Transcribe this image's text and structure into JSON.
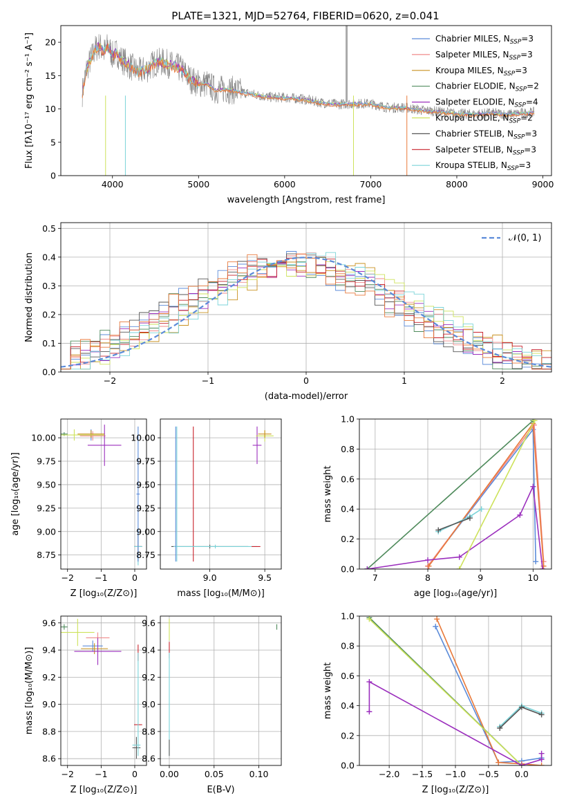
{
  "colors": {
    "chabrier_miles": "#5b8bd9",
    "salpeter_miles": "#f08a8a",
    "kroupa_miles": "#c9901f",
    "chabrier_elodie": "#4e8a5b",
    "salpeter_elodie": "#9b2ebd",
    "kroupa_elodie": "#cde25a",
    "chabrier_stelib": "#555555",
    "salpeter_stelib": "#c8202a",
    "kroupa_stelib": "#7ad3d8",
    "weight_orange": "#e8793a",
    "normal_curve": "#5b8bd9",
    "spectrum_data": "#808080"
  },
  "chart_data": [
    {
      "id": "spectrum",
      "type": "line",
      "title": "PLATE=1321, MJD=52764, FIBERID=0620, z=0.041",
      "xlabel": "wavelength [Angstrom, rest frame]",
      "ylabel": "Flux [fλ10⁻¹⁷ erg cm⁻² s⁻¹ A⁻¹]",
      "xlim": [
        3400,
        9100
      ],
      "ylim": [
        0,
        22.5
      ],
      "xticks": [
        "4000",
        "5000",
        "6000",
        "7000",
        "8000",
        "9000"
      ],
      "yticks": [
        "0",
        "5",
        "10",
        "15",
        "20"
      ],
      "legend_position": "upper-right",
      "legend": [
        {
          "label": "Chabrier MILES, N",
          "sub": "SSP",
          "suffix": "=3"
        },
        {
          "label": "Salpeter MILES, N",
          "sub": "SSP",
          "suffix": "=3"
        },
        {
          "label": "Kroupa MILES, N",
          "sub": "SSP",
          "suffix": "=3"
        },
        {
          "label": "Chabrier ELODIE, N",
          "sub": "SSP",
          "suffix": "=2"
        },
        {
          "label": "Salpeter ELODIE, N",
          "sub": "SSP",
          "suffix": "=4"
        },
        {
          "label": "Kroupa ELODIE, N",
          "sub": "SSP",
          "suffix": "=2"
        },
        {
          "label": "Chabrier STELIB, N",
          "sub": "SSP",
          "suffix": "=3"
        },
        {
          "label": "Salpeter STELIB, N",
          "sub": "SSP",
          "suffix": "=3"
        },
        {
          "label": "Kroupa STELIB, N",
          "sub": "SSP",
          "suffix": "=3"
        }
      ],
      "spectrum_points": [
        [
          3650,
          12.5
        ],
        [
          3700,
          16
        ],
        [
          3750,
          17.5
        ],
        [
          3800,
          19
        ],
        [
          3850,
          19.5
        ],
        [
          3900,
          18.5
        ],
        [
          3950,
          19.5
        ],
        [
          4000,
          18
        ],
        [
          4050,
          18.5
        ],
        [
          4100,
          17.5
        ],
        [
          4200,
          16.5
        ],
        [
          4300,
          15.5
        ],
        [
          4400,
          16
        ],
        [
          4500,
          17
        ],
        [
          4600,
          17
        ],
        [
          4700,
          16.5
        ],
        [
          4800,
          16
        ],
        [
          4900,
          14.5
        ],
        [
          5000,
          13.8
        ],
        [
          5100,
          13.8
        ],
        [
          5200,
          12.8
        ],
        [
          5300,
          13
        ],
        [
          5400,
          12.8
        ],
        [
          5500,
          12.5
        ],
        [
          5600,
          12.3
        ],
        [
          5800,
          11.8
        ],
        [
          6000,
          11.7
        ],
        [
          6200,
          11.5
        ],
        [
          6400,
          11
        ],
        [
          6600,
          10.7
        ],
        [
          6800,
          10.8
        ],
        [
          7000,
          10.8
        ],
        [
          7200,
          10.2
        ],
        [
          7400,
          10.2
        ],
        [
          7600,
          9.8
        ],
        [
          7800,
          9.6
        ],
        [
          8000,
          9.3
        ],
        [
          8200,
          9.2
        ],
        [
          8400,
          9.4
        ],
        [
          8600,
          9.2
        ],
        [
          8800,
          9.4
        ],
        [
          8900,
          9.5
        ]
      ]
    },
    {
      "id": "residuals",
      "type": "step",
      "xlabel": "(data-model)/error",
      "ylabel": "Normed distribution",
      "xlim": [
        -2.5,
        2.5
      ],
      "ylim": [
        0,
        0.52
      ],
      "xticks": [
        "−2",
        "−1",
        "0",
        "1",
        "2"
      ],
      "yticks": [
        "0.0",
        "0.1",
        "0.2",
        "0.3",
        "0.4",
        "0.5"
      ],
      "legend_position": "upper-right",
      "normal_legend": "𝒩(0, 1)",
      "bin_width": 0.1
    },
    {
      "id": "age_vs_Z",
      "type": "errorbar",
      "xlabel": "Z [log₁₀(Z/Z⊙)]",
      "ylabel": "age  [log₁₀(age/yr)]",
      "xlim": [
        -2.2,
        0.35
      ],
      "ylim": [
        8.6,
        10.2
      ],
      "xticks": [
        "−2",
        "−1",
        "0"
      ],
      "yticks": [
        "8.75",
        "9.00",
        "9.25",
        "9.50",
        "9.75",
        "10.00"
      ],
      "points": [
        {
          "model": "chabrier_miles",
          "x": -1.3,
          "xerr": 0.35,
          "y": 10.03,
          "yerr": 0.06
        },
        {
          "model": "salpeter_miles",
          "x": -1.25,
          "xerr": 0.38,
          "y": 10.02,
          "yerr": 0.05
        },
        {
          "model": "kroupa_miles",
          "x": -1.3,
          "xerr": 0.4,
          "y": 10.04,
          "yerr": 0.04
        },
        {
          "model": "chabrier_elodie",
          "x": -2.1,
          "xerr": 0.1,
          "y": 10.04,
          "yerr": 0.02
        },
        {
          "model": "salpeter_elodie",
          "x": -0.9,
          "xerr": 0.5,
          "y": 9.92,
          "yerr": 0.22
        },
        {
          "model": "kroupa_elodie",
          "x": -1.8,
          "xerr": 0.9,
          "y": 10.03,
          "yerr": 0.06
        },
        {
          "model": "chabrier_stelib",
          "x": 0.1,
          "xerr": 0.12,
          "y": 8.84,
          "yerr": 0.16
        },
        {
          "model": "salpeter_stelib",
          "x": 0.1,
          "xerr": 0.1,
          "y": 8.84,
          "yerr": 0.12
        },
        {
          "model": "kroupa_stelib",
          "x": 0.1,
          "xerr": 0.12,
          "y": 8.84,
          "yerr": 0.2
        },
        {
          "model": "chabrier_miles",
          "x": 0.1,
          "xerr": 0.05,
          "y": 9.4,
          "yerr": 0.72
        }
      ]
    },
    {
      "id": "age_vs_mass",
      "type": "errorbar",
      "xlabel": "mass [log₁₀(M/M⊙)]",
      "xlim": [
        8.55,
        9.65
      ],
      "ylim": [
        8.6,
        10.2
      ],
      "xticks": [
        "9.0",
        "9.5"
      ],
      "yticks": [
        "8.75",
        "9.00",
        "9.25",
        "9.50",
        "9.75",
        "10.00"
      ],
      "points": [
        {
          "model": "chabrier_stelib",
          "x": 9.0,
          "xerr": 0.35,
          "y": 8.84,
          "yerr": 0.02
        },
        {
          "model": "salpeter_stelib",
          "x": 8.85,
          "xerr": 0.0,
          "y": 9.4,
          "yerr": 0.72
        },
        {
          "model": "kroupa_stelib",
          "x": 9.05,
          "xerr": 0.38,
          "y": 8.84,
          "yerr": 0.02
        },
        {
          "model": "chabrier_miles",
          "x": 8.69,
          "xerr": 0.0,
          "y": 9.4,
          "yerr": 0.72
        },
        {
          "model": "kroupa_stelib",
          "x": 8.7,
          "xerr": 0.0,
          "y": 9.4,
          "yerr": 0.72
        },
        {
          "model": "salpeter_elodie",
          "x": 9.43,
          "xerr": 0.04,
          "y": 9.92,
          "yerr": 0.2
        },
        {
          "model": "kroupa_elodie",
          "x": 9.5,
          "xerr": 0.08,
          "y": 10.02,
          "yerr": 0.06
        },
        {
          "model": "kroupa_miles",
          "x": 9.5,
          "xerr": 0.06,
          "y": 10.04,
          "yerr": 0.04
        },
        {
          "model": "salpeter_stelib",
          "x": 9.42,
          "xerr": 0.04,
          "y": 8.84,
          "yerr": 0.0
        }
      ]
    },
    {
      "id": "mass_weight_vs_age",
      "type": "line",
      "xlabel": "age  [log₁₀(age/yr)]",
      "ylabel": "mass weight",
      "xlim": [
        6.7,
        10.35
      ],
      "ylim": [
        0,
        1.0
      ],
      "xticks": [
        "7",
        "8",
        "9",
        "10"
      ],
      "yticks": [
        "0.0",
        "0.2",
        "0.4",
        "0.6",
        "0.8",
        "1.0"
      ],
      "series": [
        {
          "model": "chabrier_miles",
          "x": [
            8.0,
            10.0,
            10.05
          ],
          "y": [
            0.02,
            0.93,
            0.05
          ]
        },
        {
          "model": "salpeter_miles",
          "x": [
            8.0,
            10.02,
            10.2
          ],
          "y": [
            0.02,
            0.96,
            0.05
          ]
        },
        {
          "model": "weight_orange",
          "x": [
            8.02,
            10.0,
            10.2
          ],
          "y": [
            0.02,
            0.97,
            0.02
          ]
        },
        {
          "model": "chabrier_elodie",
          "x": [
            6.85,
            10.0
          ],
          "y": [
            0.0,
            0.99
          ]
        },
        {
          "model": "salpeter_elodie",
          "x": [
            6.85,
            8.0,
            8.6,
            9.75,
            10.0,
            10.18
          ],
          "y": [
            0.0,
            0.06,
            0.08,
            0.36,
            0.55,
            0.0
          ]
        },
        {
          "model": "kroupa_elodie",
          "x": [
            8.6,
            10.03
          ],
          "y": [
            0.0,
            0.99
          ]
        },
        {
          "model": "kroupa_stelib",
          "x": [
            8.2,
            8.8,
            9.02
          ],
          "y": [
            0.25,
            0.35,
            0.4
          ]
        },
        {
          "model": "chabrier_stelib",
          "x": [
            8.2,
            8.8
          ],
          "y": [
            0.26,
            0.34
          ]
        }
      ]
    },
    {
      "id": "mass_vs_Z",
      "type": "errorbar",
      "xlabel": "Z [log₁₀(Z/Z⊙)]",
      "ylabel": "mass [log₁₀(M/M⊙)]",
      "xlim": [
        -2.2,
        0.35
      ],
      "ylim": [
        8.55,
        9.65
      ],
      "xticks": [
        "−2",
        "−1",
        "0"
      ],
      "yticks": [
        "8.6",
        "8.8",
        "9.0",
        "9.2",
        "9.4",
        "9.6"
      ],
      "points": [
        {
          "model": "chabrier_miles",
          "x": -1.25,
          "xerr": 0.3,
          "y": 9.43,
          "yerr": 0.04
        },
        {
          "model": "salpeter_miles",
          "x": -1.1,
          "xerr": 0.35,
          "y": 9.49,
          "yerr": 0.04
        },
        {
          "model": "kroupa_miles",
          "x": -1.2,
          "xerr": 0.4,
          "y": 9.41,
          "yerr": 0.04
        },
        {
          "model": "chabrier_elodie",
          "x": -2.1,
          "xerr": 0.1,
          "y": 9.57,
          "yerr": 0.02
        },
        {
          "model": "salpeter_elodie",
          "x": -1.1,
          "xerr": 0.7,
          "y": 9.39,
          "yerr": 0.1
        },
        {
          "model": "kroupa_elodie",
          "x": -1.7,
          "xerr": 0.5,
          "y": 9.53,
          "yerr": 0.1
        },
        {
          "model": "chabrier_stelib",
          "x": 0.05,
          "xerr": 0.12,
          "y": 8.68,
          "yerr": 0.08
        },
        {
          "model": "salpeter_stelib",
          "x": 0.1,
          "xerr": 0.12,
          "y": 8.85,
          "yerr": 0.0
        },
        {
          "model": "salpeter_stelib",
          "x": 0.1,
          "xerr": 0.0,
          "y": 9.38,
          "yerr": 0.06
        },
        {
          "model": "kroupa_stelib",
          "x": 0.05,
          "xerr": 0.12,
          "y": 8.7,
          "yerr": 0.0
        },
        {
          "model": "kroupa_stelib",
          "x": 0.1,
          "xerr": 0.0,
          "y": 9.0,
          "yerr": 0.38
        }
      ]
    },
    {
      "id": "mass_vs_ebv",
      "type": "errorbar",
      "xlabel": "E(B-V)",
      "xlim": [
        -0.01,
        0.125
      ],
      "ylim": [
        8.55,
        9.65
      ],
      "xticks": [
        "0.00",
        "0.05",
        "0.10"
      ],
      "yticks": [
        "8.6",
        "8.8",
        "9.0",
        "9.2",
        "9.4",
        "9.6"
      ],
      "points": [
        {
          "model": "salpeter_stelib",
          "x": 0.0,
          "xerr": 0.0,
          "y": 9.4,
          "yerr": 0.06
        },
        {
          "model": "kroupa_elodie",
          "x": 0.0,
          "xerr": 0.0,
          "y": 9.55,
          "yerr": 0.08
        },
        {
          "model": "kroupa_stelib",
          "x": 0.0,
          "xerr": 0.0,
          "y": 9.0,
          "yerr": 0.38
        },
        {
          "model": "chabrier_elodie",
          "x": 0.12,
          "xerr": 0.0,
          "y": 9.57,
          "yerr": 0.02
        },
        {
          "model": "chabrier_stelib",
          "x": 0.0,
          "xerr": 0.0,
          "y": 8.68,
          "yerr": 0.06
        }
      ]
    },
    {
      "id": "mass_weight_vs_Z",
      "type": "line",
      "xlabel": "Z [log₁₀(Z/Z⊙)]",
      "ylabel": "mass weight",
      "xlim": [
        -2.45,
        0.45
      ],
      "ylim": [
        0,
        1.0
      ],
      "xticks": [
        "−2.0",
        "−1.5",
        "−1.0",
        "−0.5",
        "0.0"
      ],
      "yticks": [
        "0.0",
        "0.2",
        "0.4",
        "0.6",
        "0.8",
        "1.0"
      ],
      "series": [
        {
          "model": "chabrier_miles",
          "x": [
            -1.3,
            -0.35,
            0.0,
            0.3
          ],
          "y": [
            0.93,
            0.02,
            0.03,
            0.05
          ]
        },
        {
          "model": "weight_orange",
          "x": [
            -1.28,
            -0.35,
            0.0,
            0.3
          ],
          "y": [
            0.98,
            0.02,
            0.01,
            0.0
          ]
        },
        {
          "model": "chabrier_elodie",
          "x": [
            -2.3,
            0.0
          ],
          "y": [
            0.99,
            0.0
          ]
        },
        {
          "model": "kroupa_elodie",
          "x": [
            -2.3,
            0.0
          ],
          "y": [
            0.98,
            0.0
          ]
        },
        {
          "model": "salpeter_elodie",
          "x": [
            -2.3,
            -2.3,
            0.0,
            0.3,
            0.3
          ],
          "y": [
            0.36,
            0.56,
            0.0,
            0.04,
            0.08
          ]
        },
        {
          "model": "kroupa_stelib",
          "x": [
            -0.33,
            0.0,
            0.3
          ],
          "y": [
            0.26,
            0.4,
            0.35
          ]
        },
        {
          "model": "chabrier_stelib",
          "x": [
            -0.33,
            0.0,
            0.3
          ],
          "y": [
            0.25,
            0.39,
            0.34
          ]
        }
      ]
    }
  ]
}
